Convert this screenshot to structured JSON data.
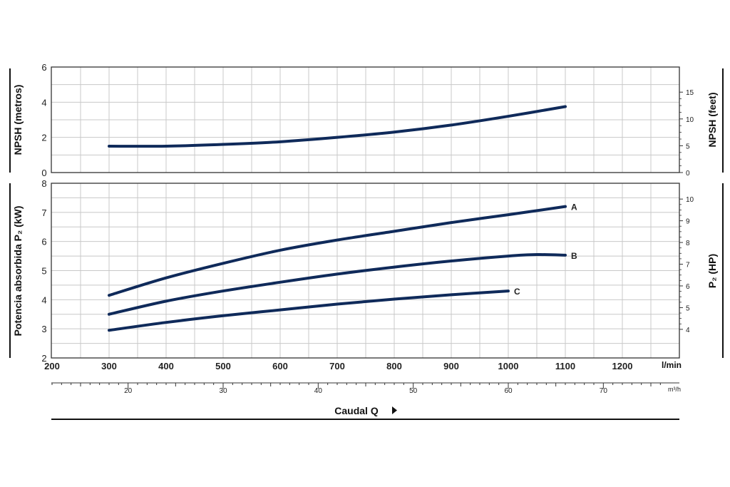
{
  "chart_data": [
    {
      "type": "line",
      "name": "npsh",
      "ylabel": "NPSH (metros)",
      "y2label": "NPSH (feet)",
      "ylim": [
        0,
        6
      ],
      "yticks": [
        "0",
        "2",
        "4",
        "6"
      ],
      "y2ticks": [
        "0",
        "5",
        "10",
        "15"
      ],
      "grid": true,
      "series": [
        {
          "name": "",
          "x": [
            300,
            400,
            500,
            600,
            700,
            800,
            900,
            1000,
            1100
          ],
          "values": [
            1.5,
            1.5,
            1.6,
            1.75,
            2.0,
            2.3,
            2.7,
            3.2,
            3.75
          ]
        }
      ]
    },
    {
      "type": "line",
      "name": "power",
      "ylabel": "Potencia absorbida P₂ (kW)",
      "y2label": "P₂ (HP)",
      "ylim": [
        2,
        8
      ],
      "yticks": [
        "2",
        "3",
        "4",
        "5",
        "6",
        "7",
        "8"
      ],
      "y2ticks": [
        "4",
        "5",
        "6",
        "7",
        "8",
        "9",
        "10"
      ],
      "grid": true,
      "series": [
        {
          "name": "A",
          "x": [
            300,
            400,
            500,
            600,
            700,
            800,
            900,
            1000,
            1100
          ],
          "values": [
            4.15,
            4.75,
            5.25,
            5.7,
            6.05,
            6.35,
            6.65,
            6.92,
            7.2
          ]
        },
        {
          "name": "B",
          "x": [
            300,
            400,
            500,
            600,
            700,
            800,
            900,
            1000,
            1050,
            1100
          ],
          "values": [
            3.5,
            3.95,
            4.3,
            4.6,
            4.88,
            5.12,
            5.33,
            5.5,
            5.55,
            5.53
          ]
        },
        {
          "name": "C",
          "x": [
            300,
            400,
            500,
            600,
            700,
            800,
            900,
            1000
          ],
          "values": [
            2.95,
            3.22,
            3.45,
            3.65,
            3.85,
            4.02,
            4.17,
            4.3
          ]
        }
      ]
    }
  ],
  "x_axis": {
    "lpm_ticks": [
      "200",
      "300",
      "400",
      "500",
      "600",
      "700",
      "800",
      "900",
      "1000",
      "1100",
      "1200"
    ],
    "lpm_unit": "l/min",
    "m3h_ticks": [
      "20",
      "30",
      "40",
      "50",
      "60",
      "70"
    ],
    "m3h_unit": "m³/h",
    "title": "Caudal Q"
  },
  "colors": {
    "curve": "#0f2a5a",
    "grid": "#c8c8c8",
    "frame": "#333333"
  }
}
